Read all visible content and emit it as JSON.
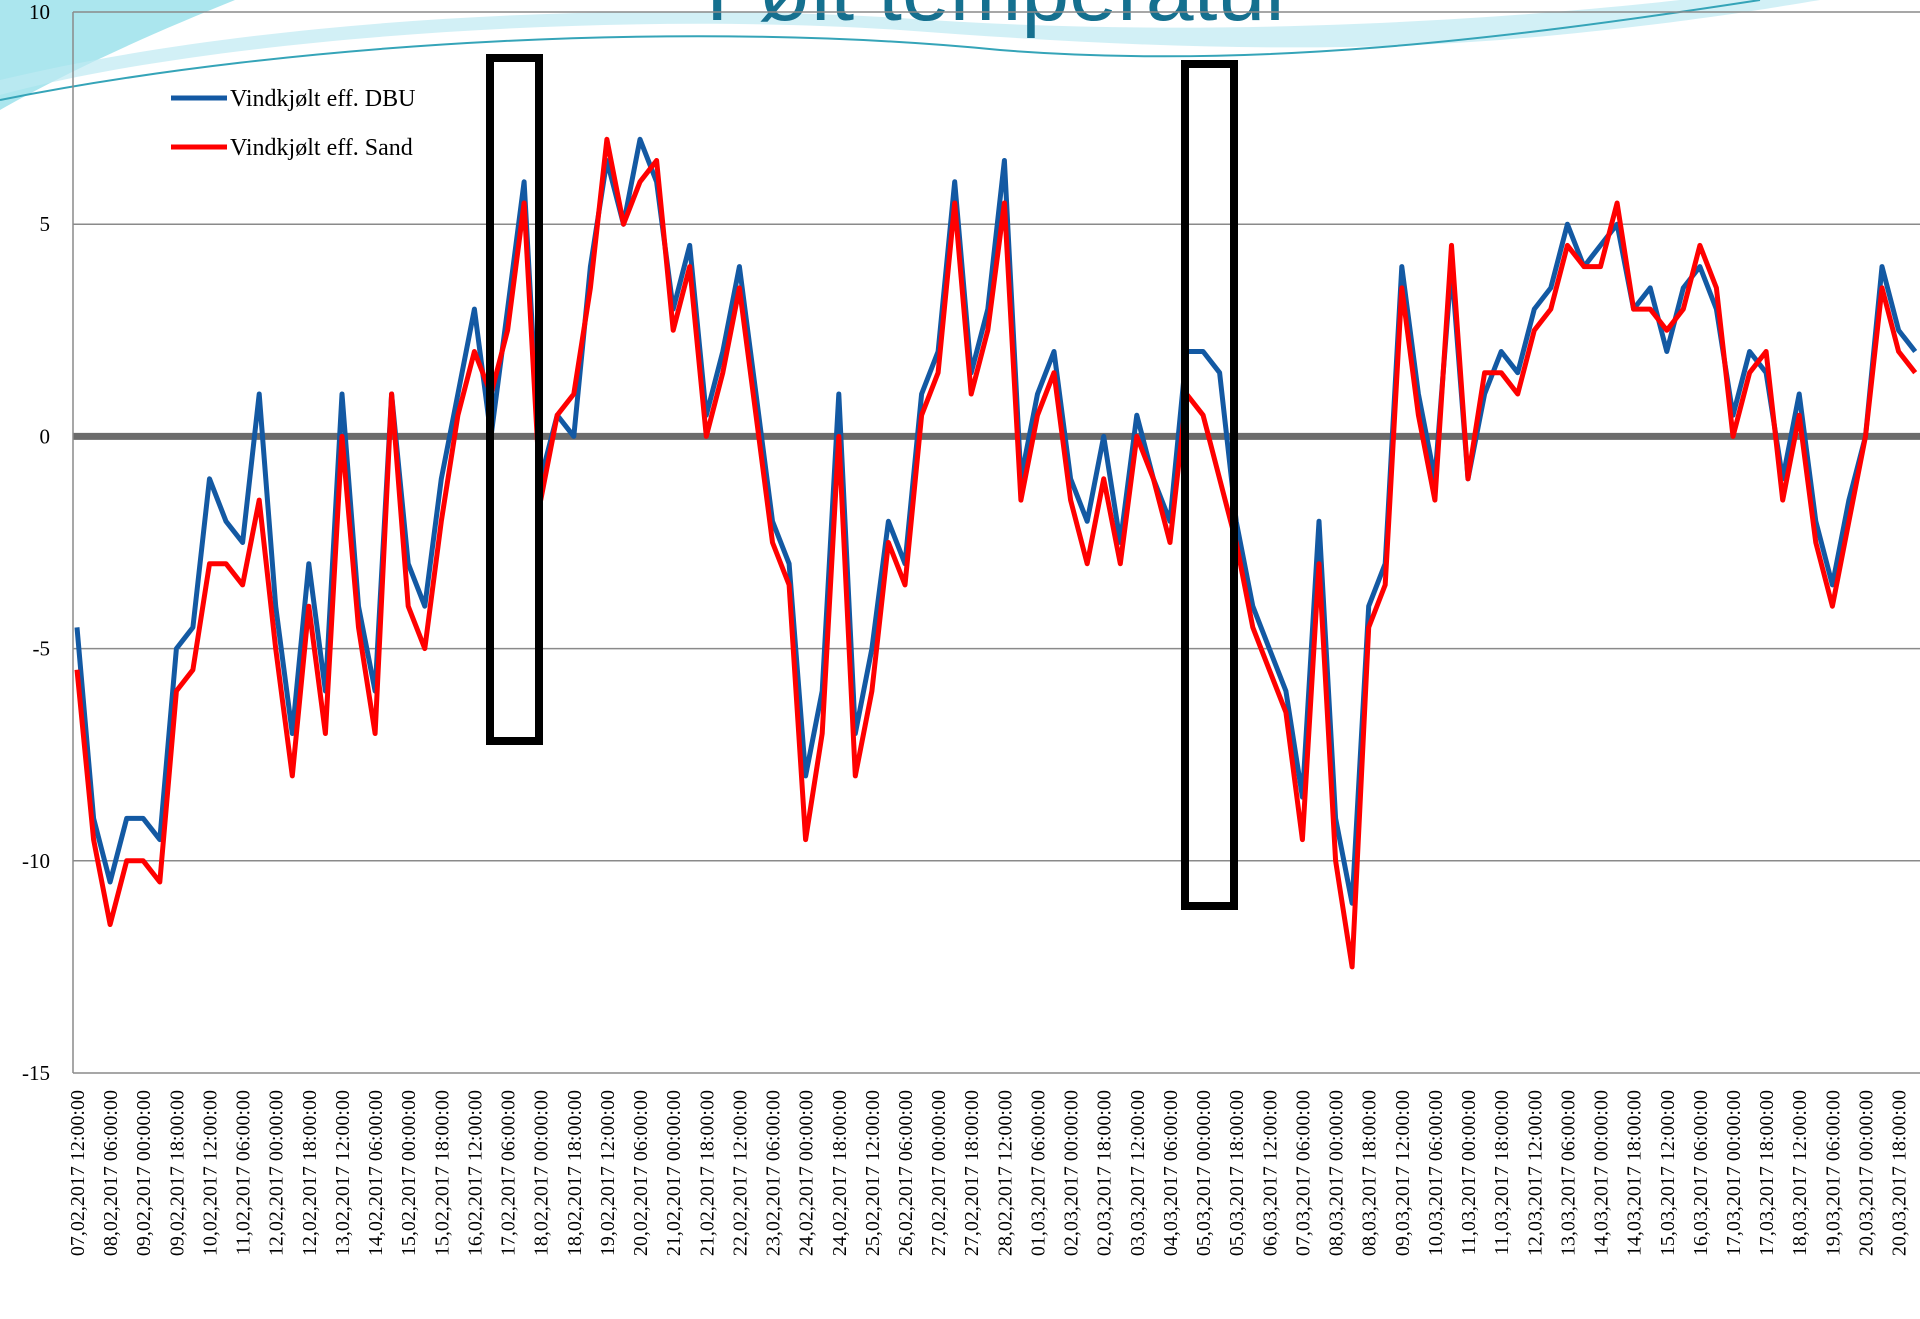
{
  "chart_data": {
    "type": "line",
    "title": "Følt temperatur",
    "categories": [
      "07,02,2017  12:00:00",
      null,
      "08,02,2017  06:00:00",
      null,
      "09,02,2017  00:00:00",
      null,
      "09,02,2017  18:00:00",
      null,
      "10,02,2017  12:00:00",
      null,
      "11,02,2017  06:00:00",
      null,
      "12,02,2017  00:00:00",
      null,
      "12,02,2017  18:00:00",
      null,
      "13,02,2017  12:00:00",
      null,
      "14,02,2017  06:00:00",
      null,
      "15,02,2017  00:00:00",
      null,
      "15,02,2017  18:00:00",
      null,
      "16,02,2017  12:00:00",
      null,
      "17,02,2017  06:00:00",
      null,
      "18,02,2017  00:00:00",
      null,
      "18,02,2017  18:00:00",
      null,
      "19,02,2017  12:00:00",
      null,
      "20,02,2017  06:00:00",
      null,
      "21,02,2017  00:00:00",
      null,
      "21,02,2017  18:00:00",
      null,
      "22,02,2017  12:00:00",
      null,
      "23,02,2017  06:00:00",
      null,
      "24,02,2017  00:00:00",
      null,
      "24,02,2017  18:00:00",
      null,
      "25,02,2017  12:00:00",
      null,
      "26,02,2017  06:00:00",
      null,
      "27,02,2017  00:00:00",
      null,
      "27,02,2017  18:00:00",
      null,
      "28,02,2017  12:00:00",
      null,
      "01,03,2017  06:00:00",
      null,
      "02,03,2017  00:00:00",
      null,
      "02,03,2017  18:00:00",
      null,
      "03,03,2017  12:00:00",
      null,
      "04,03,2017  06:00:00",
      null,
      "05,03,2017  00:00:00",
      null,
      "05,03,2017  18:00:00",
      null,
      "06,03,2017  12:00:00",
      null,
      "07,03,2017  06:00:00",
      null,
      "08,03,2017  00:00:00",
      null,
      "08,03,2017  18:00:00",
      null,
      "09,03,2017  12:00:00",
      null,
      "10,03,2017  06:00:00",
      null,
      "11,03,2017  00:00:00",
      null,
      "11,03,2017  18:00:00",
      null,
      "12,03,2017  12:00:00",
      null,
      "13,03,2017  06:00:00",
      null,
      "14,03,2017  00:00:00",
      null,
      "14,03,2017  18:00:00",
      null,
      "15,03,2017  12:00:00",
      null,
      "16,03,2017  06:00:00",
      null,
      "17,03,2017  00:00:00",
      null,
      "17,03,2017  18:00:00",
      null,
      "18,03,2017  12:00:00",
      null,
      "19,03,2017  06:00:00",
      null,
      "20,03,2017  00:00:00",
      null,
      "20,03,2017  18:00:00",
      null
    ],
    "series": [
      {
        "name": "Vindkjølt eff. DBU",
        "color": "#1359a3",
        "values": [
          -4.5,
          -9,
          -10.5,
          -9,
          -9,
          -9.5,
          -5,
          -4.5,
          -1,
          -2,
          -2.5,
          1,
          -4,
          -7,
          -3,
          -6,
          1,
          -4,
          -6,
          1,
          -3,
          -4,
          -1,
          1,
          3,
          0,
          3,
          6,
          -1,
          0.5,
          0,
          4,
          6.5,
          5,
          7,
          6,
          3,
          4.5,
          0.5,
          2,
          4,
          1,
          -2,
          -3,
          -8,
          -6,
          1,
          -7,
          -5,
          -2,
          -3,
          1,
          2,
          6,
          1.5,
          3,
          6.5,
          -1,
          1,
          2,
          -1,
          -2,
          0,
          -2.5,
          0.5,
          -1,
          -2,
          2,
          2,
          1.5,
          -2,
          -4,
          -5,
          -6,
          -8.5,
          -2,
          -9,
          -11,
          -4,
          -3,
          4,
          1,
          -1,
          4,
          -1,
          1,
          2,
          1.5,
          3,
          3.5,
          5,
          4,
          4.5,
          5,
          3,
          3.5,
          2,
          3.5,
          4,
          3,
          0.5,
          2,
          1.5,
          -1,
          1,
          -2,
          -3.5,
          -1.5,
          0,
          4,
          2.5,
          2
        ]
      },
      {
        "name": "Vindkjølt eff. Sand",
        "color": "#ff0000",
        "values": [
          -5.5,
          -9.5,
          -11.5,
          -10,
          -10,
          -10.5,
          -6,
          -5.5,
          -3,
          -3,
          -3.5,
          -1.5,
          -5,
          -8,
          -4,
          -7,
          0,
          -4.5,
          -7,
          1,
          -4,
          -5,
          -2,
          0.5,
          2,
          1,
          2.5,
          5.5,
          -1.5,
          0.5,
          1,
          3.5,
          7,
          5,
          6,
          6.5,
          2.5,
          4,
          0,
          1.5,
          3.5,
          0.5,
          -2.5,
          -3.5,
          -9.5,
          -7,
          0,
          -8,
          -6,
          -2.5,
          -3.5,
          0.5,
          1.5,
          5.5,
          1,
          2.5,
          5.5,
          -1.5,
          0.5,
          1.5,
          -1.5,
          -3,
          -1,
          -3,
          0,
          -1,
          -2.5,
          1,
          0.5,
          -1,
          -2.5,
          -4.5,
          -5.5,
          -6.5,
          -9.5,
          -3,
          -10,
          -12.5,
          -4.5,
          -3.5,
          3.5,
          0.5,
          -1.5,
          4.5,
          -1,
          1.5,
          1.5,
          1,
          2.5,
          3,
          4.5,
          4,
          4,
          5.5,
          3,
          3,
          2.5,
          3,
          4.5,
          3.5,
          0,
          1.5,
          2,
          -1.5,
          0.5,
          -2.5,
          -4,
          -2,
          0,
          3.5,
          2,
          1.5
        ]
      }
    ],
    "ylim": [
      -15,
      10
    ],
    "yticks": [
      -15,
      -10,
      -5,
      0,
      5,
      10
    ],
    "grid": true,
    "legend": "upper left"
  }
}
